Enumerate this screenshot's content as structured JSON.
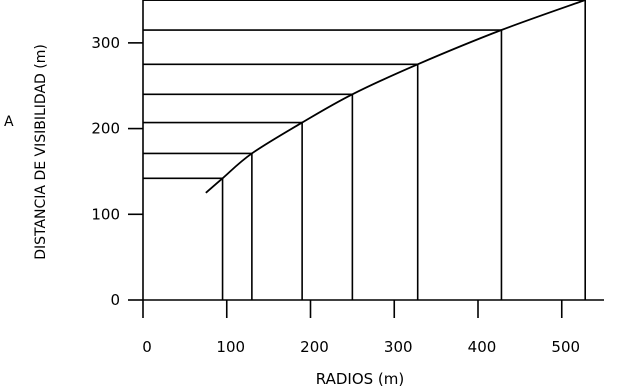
{
  "chart_data": {
    "type": "line",
    "title": "",
    "xlabel": "RADIOS  (m)",
    "ylabel": "DISTANCIA  DE  VISIBILIDAD  (m)",
    "left_fragment": "A",
    "xlim": [
      0,
      520
    ],
    "ylim": [
      0,
      350
    ],
    "x_ticks": [
      0,
      100,
      200,
      300,
      400,
      500
    ],
    "x_tick_labels": [
      "0",
      "100",
      "200",
      "300",
      "400",
      "500"
    ],
    "y_ticks": [
      0,
      100,
      200,
      300
    ],
    "y_tick_labels": [
      "0",
      "100",
      "200",
      "300"
    ],
    "grid": false,
    "legend": "none",
    "curve": [
      {
        "x": 75,
        "y": 125
      },
      {
        "x": 95,
        "y": 142
      },
      {
        "x": 130,
        "y": 171
      },
      {
        "x": 190,
        "y": 207
      },
      {
        "x": 250,
        "y": 240
      },
      {
        "x": 328,
        "y": 275
      },
      {
        "x": 428,
        "y": 315
      },
      {
        "x": 528,
        "y": 350
      }
    ],
    "reference_points": [
      {
        "x": 95,
        "y": 142
      },
      {
        "x": 130,
        "y": 171
      },
      {
        "x": 190,
        "y": 207
      },
      {
        "x": 250,
        "y": 240
      },
      {
        "x": 328,
        "y": 275
      },
      {
        "x": 428,
        "y": 315
      },
      {
        "x": 528,
        "y": 350
      }
    ]
  }
}
